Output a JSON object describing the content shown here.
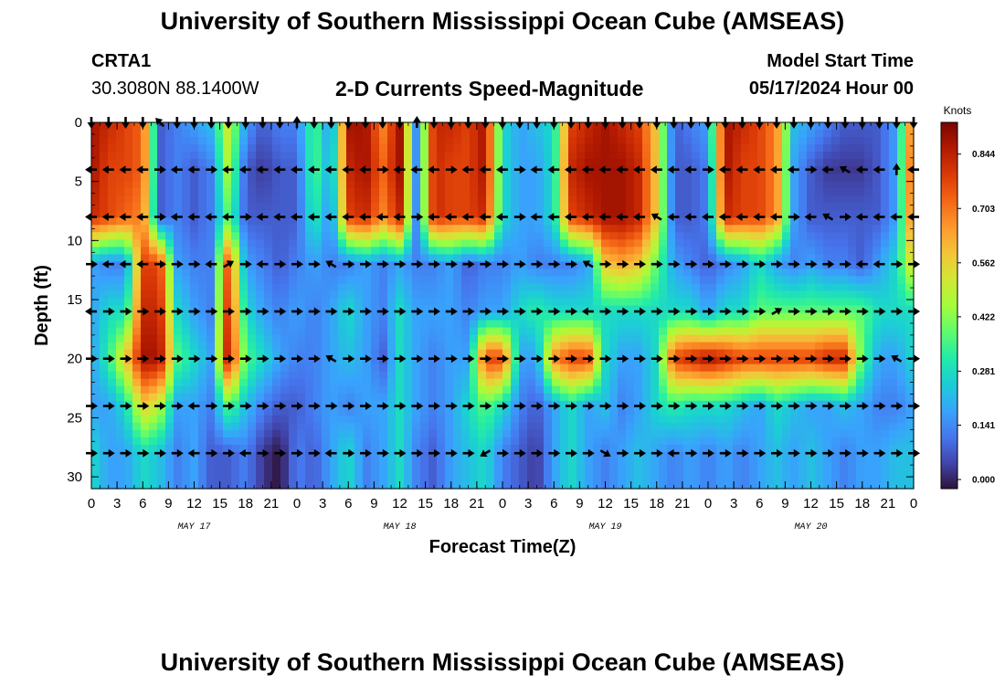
{
  "header": {
    "title": "University of Southern Mississippi Ocean Cube (AMSEAS)",
    "station": "CRTA1",
    "coords": "30.3080N  88.1400W",
    "model_start_label": "Model Start Time",
    "model_start_value": "05/17/2024 Hour 00"
  },
  "footer": {
    "title": "University of Southern Mississippi Ocean Cube (AMSEAS)"
  },
  "chart_data": {
    "type": "heatmap",
    "title": "2-D Currents Speed-Magnitude",
    "xlabel": "Forecast Time(Z)",
    "ylabel": "Depth (ft)",
    "xlim": [
      0,
      96
    ],
    "ylim": [
      31,
      0
    ],
    "x_tick_labels": [
      "0",
      "3",
      "6",
      "9",
      "12",
      "15",
      "18",
      "21",
      "0",
      "3",
      "6",
      "9",
      "12",
      "15",
      "18",
      "21",
      "0",
      "3",
      "6",
      "9",
      "12",
      "15",
      "18",
      "21",
      "0",
      "3",
      "6",
      "9",
      "12",
      "15",
      "18",
      "21",
      "0"
    ],
    "y_ticks": [
      0,
      5,
      10,
      15,
      20,
      25,
      30
    ],
    "date_labels": [
      {
        "text": "MAY 17",
        "hour": 12
      },
      {
        "text": "MAY 18",
        "hour": 36
      },
      {
        "text": "MAY 19",
        "hour": 60
      },
      {
        "text": "MAY 20",
        "hour": 84
      }
    ],
    "colorbar": {
      "unit": "Knots",
      "ticks": [
        0.0,
        0.141,
        0.281,
        0.422,
        0.562,
        0.703,
        0.844
      ],
      "tick_labels": [
        "0.000",
        "0.141",
        "0.281",
        "0.422",
        "0.562",
        "0.703",
        "0.844"
      ],
      "vmin": 0.0,
      "vmax": 0.95
    },
    "depth_levels": [
      0,
      4,
      8,
      12,
      16,
      20,
      24,
      28
    ],
    "hour_step": 2,
    "speed_grid_knots": [
      [
        0.9,
        0.85,
        0.8,
        0.75,
        0.1,
        0.15,
        0.2,
        0.25,
        0.55,
        0.2,
        0.1,
        0.15,
        0.15,
        0.4,
        0.15,
        0.9,
        0.9,
        0.7,
        0.9,
        0.15,
        0.85,
        0.85,
        0.8,
        0.9,
        0.3,
        0.2,
        0.25,
        0.3,
        0.8,
        0.85,
        0.9,
        0.85,
        0.8,
        0.6,
        0.1,
        0.15,
        0.2,
        0.9,
        0.85,
        0.8,
        0.7,
        0.25,
        0.2,
        0.15,
        0.1,
        0.1,
        0.1,
        0.2,
        0.8,
        0.9
      ],
      [
        0.9,
        0.8,
        0.8,
        0.75,
        0.1,
        0.15,
        0.1,
        0.15,
        0.5,
        0.1,
        0.05,
        0.1,
        0.1,
        0.4,
        0.2,
        0.85,
        0.9,
        0.75,
        0.9,
        0.15,
        0.85,
        0.8,
        0.8,
        0.9,
        0.3,
        0.2,
        0.2,
        0.3,
        0.85,
        0.9,
        0.9,
        0.9,
        0.85,
        0.6,
        0.1,
        0.1,
        0.15,
        0.9,
        0.8,
        0.8,
        0.7,
        0.2,
        0.1,
        0.05,
        0.05,
        0.05,
        0.1,
        0.2,
        0.85,
        0.9
      ],
      [
        0.85,
        0.8,
        0.75,
        0.7,
        0.1,
        0.15,
        0.1,
        0.15,
        0.4,
        0.1,
        0.1,
        0.1,
        0.1,
        0.35,
        0.15,
        0.8,
        0.85,
        0.7,
        0.85,
        0.15,
        0.85,
        0.8,
        0.8,
        0.85,
        0.3,
        0.2,
        0.2,
        0.3,
        0.8,
        0.85,
        0.9,
        0.9,
        0.85,
        0.6,
        0.1,
        0.1,
        0.15,
        0.85,
        0.8,
        0.8,
        0.7,
        0.2,
        0.1,
        0.1,
        0.1,
        0.1,
        0.1,
        0.2,
        0.8,
        0.85
      ],
      [
        0.2,
        0.15,
        0.15,
        0.8,
        0.8,
        0.2,
        0.15,
        0.15,
        0.8,
        0.2,
        0.15,
        0.1,
        0.15,
        0.2,
        0.15,
        0.15,
        0.2,
        0.15,
        0.2,
        0.15,
        0.15,
        0.2,
        0.1,
        0.15,
        0.15,
        0.2,
        0.15,
        0.15,
        0.15,
        0.2,
        0.6,
        0.65,
        0.6,
        0.4,
        0.2,
        0.15,
        0.1,
        0.15,
        0.2,
        0.3,
        0.2,
        0.15,
        0.2,
        0.15,
        0.15,
        0.1,
        0.2,
        0.3,
        0.6,
        0.3
      ],
      [
        0.2,
        0.3,
        0.3,
        0.85,
        0.85,
        0.3,
        0.2,
        0.15,
        0.85,
        0.3,
        0.2,
        0.15,
        0.2,
        0.15,
        0.2,
        0.3,
        0.2,
        0.15,
        0.3,
        0.2,
        0.2,
        0.2,
        0.15,
        0.2,
        0.2,
        0.3,
        0.35,
        0.3,
        0.3,
        0.3,
        0.3,
        0.3,
        0.3,
        0.3,
        0.3,
        0.3,
        0.2,
        0.3,
        0.3,
        0.4,
        0.4,
        0.4,
        0.4,
        0.4,
        0.4,
        0.4,
        0.3,
        0.3,
        0.3,
        0.2
      ],
      [
        0.2,
        0.35,
        0.6,
        0.9,
        0.9,
        0.4,
        0.3,
        0.2,
        0.9,
        0.4,
        0.3,
        0.2,
        0.15,
        0.15,
        0.2,
        0.25,
        0.2,
        0.1,
        0.3,
        0.2,
        0.15,
        0.2,
        0.2,
        0.8,
        0.8,
        0.2,
        0.2,
        0.7,
        0.8,
        0.8,
        0.3,
        0.2,
        0.2,
        0.3,
        0.8,
        0.85,
        0.9,
        0.85,
        0.8,
        0.8,
        0.8,
        0.8,
        0.8,
        0.85,
        0.85,
        0.4,
        0.2,
        0.2,
        0.3,
        0.6
      ],
      [
        0.2,
        0.2,
        0.3,
        0.6,
        0.5,
        0.2,
        0.2,
        0.15,
        0.4,
        0.25,
        0.15,
        0.1,
        0.1,
        0.15,
        0.2,
        0.15,
        0.2,
        0.2,
        0.3,
        0.2,
        0.15,
        0.2,
        0.3,
        0.4,
        0.3,
        0.15,
        0.1,
        0.2,
        0.3,
        0.2,
        0.25,
        0.15,
        0.2,
        0.3,
        0.35,
        0.3,
        0.3,
        0.3,
        0.25,
        0.2,
        0.3,
        0.25,
        0.2,
        0.2,
        0.25,
        0.2,
        0.15,
        0.15,
        0.2,
        0.25
      ],
      [
        0.3,
        0.2,
        0.2,
        0.3,
        0.25,
        0.15,
        0.2,
        0.1,
        0.1,
        0.15,
        0.05,
        0.0,
        0.15,
        0.1,
        0.2,
        0.3,
        0.15,
        0.2,
        0.3,
        0.15,
        0.1,
        0.2,
        0.25,
        0.3,
        0.15,
        0.1,
        0.05,
        0.2,
        0.3,
        0.2,
        0.15,
        0.2,
        0.25,
        0.2,
        0.15,
        0.2,
        0.15,
        0.2,
        0.15,
        0.2,
        0.25,
        0.2,
        0.25,
        0.2,
        0.15,
        0.2,
        0.2,
        0.25,
        0.25,
        0.3
      ]
    ],
    "arrow_angles_deg": [
      [
        270,
        270,
        270,
        270,
        135,
        270,
        270,
        270,
        270,
        270,
        270,
        270,
        90,
        270,
        270,
        270,
        270,
        270,
        270,
        90,
        270,
        270,
        270,
        270,
        270,
        270,
        270,
        270,
        270,
        270,
        270,
        270,
        270,
        270,
        270,
        270,
        270,
        270,
        270,
        270,
        270,
        270,
        270,
        270,
        270,
        270,
        270,
        270,
        270,
        270
      ],
      [
        180,
        180,
        180,
        180,
        0,
        180,
        180,
        0,
        180,
        180,
        180,
        180,
        180,
        180,
        180,
        180,
        180,
        0,
        180,
        180,
        180,
        0,
        180,
        180,
        180,
        0,
        180,
        180,
        180,
        180,
        180,
        180,
        180,
        180,
        180,
        180,
        0,
        180,
        180,
        180,
        180,
        180,
        0,
        180,
        150,
        180,
        180,
        90,
        180,
        180
      ],
      [
        180,
        180,
        180,
        180,
        0,
        180,
        180,
        180,
        180,
        0,
        180,
        180,
        180,
        180,
        180,
        180,
        180,
        180,
        180,
        0,
        180,
        180,
        180,
        180,
        180,
        0,
        180,
        180,
        180,
        180,
        180,
        180,
        180,
        150,
        180,
        180,
        180,
        180,
        180,
        180,
        180,
        0,
        180,
        150,
        0,
        180,
        180,
        180,
        180,
        180
      ],
      [
        0,
        180,
        180,
        180,
        0,
        0,
        0,
        180,
        30,
        0,
        180,
        0,
        0,
        0,
        150,
        0,
        0,
        0,
        0,
        0,
        0,
        0,
        0,
        0,
        0,
        0,
        0,
        0,
        0,
        150,
        0,
        0,
        0,
        0,
        0,
        0,
        0,
        0,
        0,
        0,
        0,
        0,
        0,
        0,
        0,
        180,
        180,
        0,
        0,
        0
      ],
      [
        180,
        0,
        0,
        0,
        0,
        0,
        0,
        0,
        0,
        0,
        0,
        0,
        0,
        0,
        0,
        0,
        0,
        0,
        0,
        0,
        0,
        0,
        0,
        0,
        0,
        0,
        0,
        0,
        0,
        180,
        0,
        0,
        0,
        0,
        0,
        0,
        0,
        0,
        0,
        0,
        30,
        0,
        0,
        0,
        0,
        0,
        0,
        0,
        0,
        0
      ],
      [
        0,
        0,
        0,
        0,
        0,
        0,
        0,
        0,
        0,
        0,
        0,
        0,
        0,
        0,
        150,
        0,
        0,
        0,
        0,
        0,
        0,
        0,
        0,
        0,
        0,
        0,
        0,
        0,
        0,
        0,
        0,
        0,
        0,
        0,
        0,
        0,
        0,
        0,
        0,
        0,
        0,
        0,
        0,
        0,
        0,
        0,
        0,
        150,
        0,
        0
      ],
      [
        0,
        0,
        0,
        0,
        0,
        0,
        180,
        0,
        0,
        0,
        0,
        0,
        0,
        0,
        0,
        0,
        0,
        0,
        0,
        0,
        0,
        0,
        0,
        0,
        0,
        0,
        0,
        0,
        0,
        0,
        0,
        0,
        0,
        0,
        0,
        0,
        0,
        0,
        0,
        0,
        0,
        0,
        0,
        0,
        0,
        0,
        0,
        0,
        0,
        0
      ],
      [
        0,
        0,
        0,
        0,
        0,
        0,
        180,
        0,
        0,
        180,
        0,
        0,
        0,
        0,
        180,
        0,
        0,
        0,
        0,
        0,
        0,
        0,
        0,
        210,
        0,
        0,
        0,
        0,
        0,
        0,
        330,
        0,
        0,
        0,
        180,
        0,
        0,
        0,
        0,
        0,
        0,
        0,
        0,
        0,
        0,
        0,
        0,
        0,
        0,
        0
      ]
    ]
  }
}
